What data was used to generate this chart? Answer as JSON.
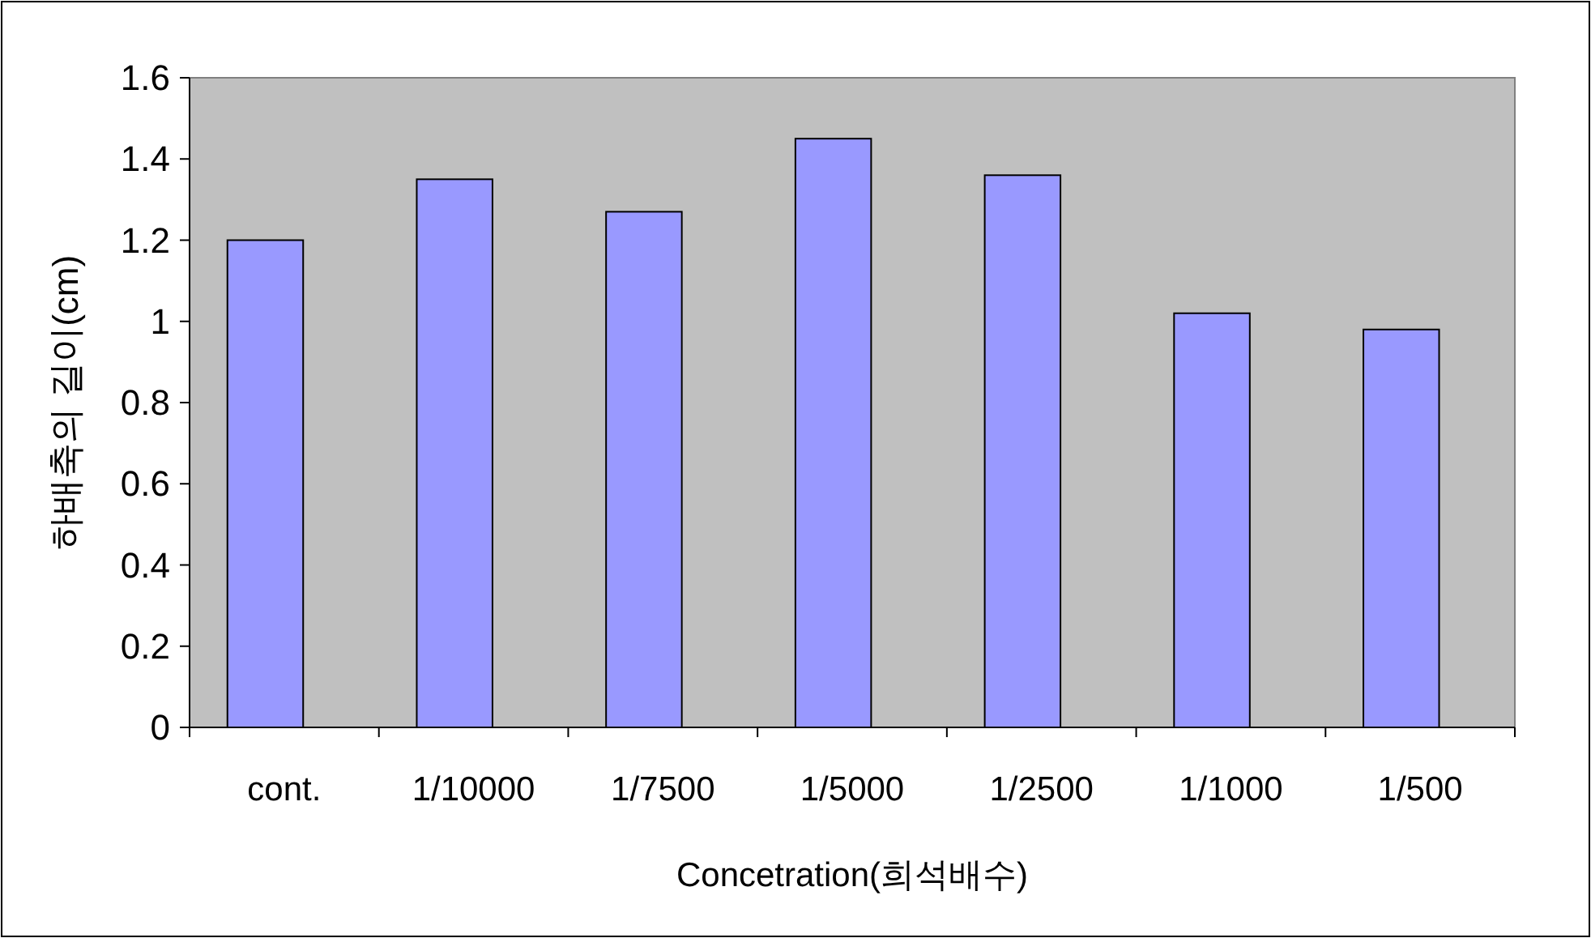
{
  "chart_data": {
    "type": "bar",
    "categories": [
      "cont.",
      "1/10000",
      "1/7500",
      "1/5000",
      "1/2500",
      "1/1000",
      "1/500"
    ],
    "values": [
      1.2,
      1.35,
      1.27,
      1.45,
      1.36,
      1.02,
      0.98
    ],
    "color": "#9999ff",
    "xlabel": "Concetration(희석배수)",
    "ylabel": "하배축의 길이(cm)",
    "ylim": [
      0,
      1.6
    ],
    "yticks": [
      0,
      0.2,
      0.4,
      0.6,
      0.8,
      1,
      1.2,
      1.4,
      1.6
    ]
  }
}
